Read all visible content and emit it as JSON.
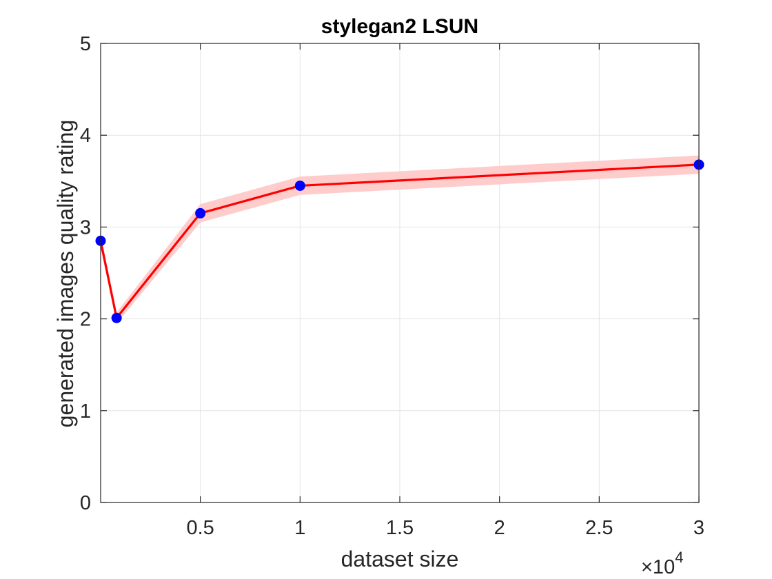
{
  "chart_data": {
    "type": "line",
    "title": "stylegan2 LSUN",
    "xlabel": "dataset size",
    "ylabel": "generated images quality rating",
    "x_multiplier_label": "×10",
    "x_multiplier_exponent": "4",
    "xlim": [
      0,
      30000
    ],
    "ylim": [
      0,
      5
    ],
    "x_ticks": [
      5000,
      10000,
      15000,
      20000,
      25000,
      30000
    ],
    "x_tick_labels": [
      "0.5",
      "1",
      "1.5",
      "2",
      "2.5",
      "3"
    ],
    "y_ticks": [
      0,
      1,
      2,
      3,
      4,
      5
    ],
    "y_tick_labels": [
      "0",
      "1",
      "2",
      "3",
      "4",
      "5"
    ],
    "grid": true,
    "series": [
      {
        "x": [
          0,
          800,
          5000,
          10000,
          30000
        ],
        "y": [
          2.85,
          2.01,
          3.15,
          3.45,
          3.68
        ],
        "band": [
          0.08,
          0.06,
          0.1,
          0.1,
          0.1
        ],
        "line_color": "#ff0000",
        "marker_color": "#0000ff",
        "band_color": "#ffcccc"
      }
    ]
  }
}
